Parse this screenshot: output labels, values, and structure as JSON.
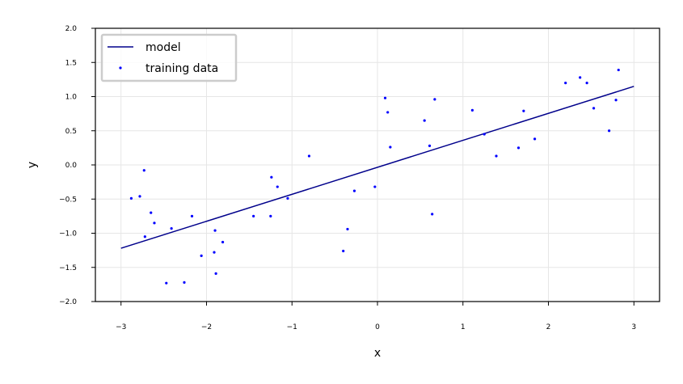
{
  "chart_data": {
    "type": "scatter",
    "xlabel": "x",
    "ylabel": "y",
    "xlim": [
      -3.3,
      3.3
    ],
    "ylim": [
      -2.0,
      2.0
    ],
    "xticks": [
      -3,
      -2,
      -1,
      0,
      1,
      2,
      3
    ],
    "xtick_labels": [
      "−3",
      "−2",
      "−1",
      "0",
      "1",
      "2",
      "3"
    ],
    "yticks": [
      -2.0,
      -1.5,
      -1.0,
      -0.5,
      0.0,
      0.5,
      1.0,
      1.5,
      2.0
    ],
    "ytick_labels": [
      "−2.0",
      "−1.5",
      "−1.0",
      "−0.5",
      "0.0",
      "0.5",
      "1.0",
      "1.5",
      "2.0"
    ],
    "grid": true,
    "legend_position": "top-left",
    "colors": {
      "line": "#00008b",
      "points": "#0000ff",
      "grid": "#e6e6e6",
      "axes": "#000000",
      "legend_border": "#cccccc"
    },
    "series": [
      {
        "name": "model",
        "kind": "line",
        "x": [
          -3.0,
          3.0
        ],
        "y": [
          -1.22,
          1.15
        ]
      },
      {
        "name": "training data",
        "kind": "scatter",
        "x": [
          -2.88,
          -2.78,
          -2.73,
          -2.72,
          -2.65,
          -2.61,
          -2.47,
          -2.41,
          -2.26,
          -2.17,
          -2.06,
          -1.91,
          -1.9,
          -1.89,
          -1.81,
          -1.45,
          -1.25,
          -1.24,
          -1.17,
          -1.05,
          -0.8,
          -0.4,
          -0.35,
          -0.27,
          -0.03,
          0.09,
          0.12,
          0.15,
          0.55,
          0.61,
          0.64,
          0.67,
          1.11,
          1.25,
          1.39,
          1.65,
          1.71,
          1.84,
          2.2,
          2.37,
          2.45,
          2.53,
          2.71,
          2.79,
          2.82
        ],
        "y": [
          -0.49,
          -0.46,
          -0.08,
          -1.05,
          -0.7,
          -0.85,
          -1.73,
          -0.93,
          -1.72,
          -0.75,
          -1.33,
          -1.28,
          -0.96,
          -1.59,
          -1.13,
          -0.75,
          -0.75,
          -0.18,
          -0.32,
          -0.49,
          0.13,
          -1.26,
          -0.94,
          -0.38,
          -0.32,
          0.98,
          0.77,
          0.26,
          0.65,
          0.28,
          -0.72,
          0.96,
          0.8,
          0.45,
          0.13,
          0.25,
          0.79,
          0.38,
          1.2,
          1.28,
          1.2,
          0.83,
          0.5,
          0.95,
          1.39
        ]
      }
    ]
  }
}
